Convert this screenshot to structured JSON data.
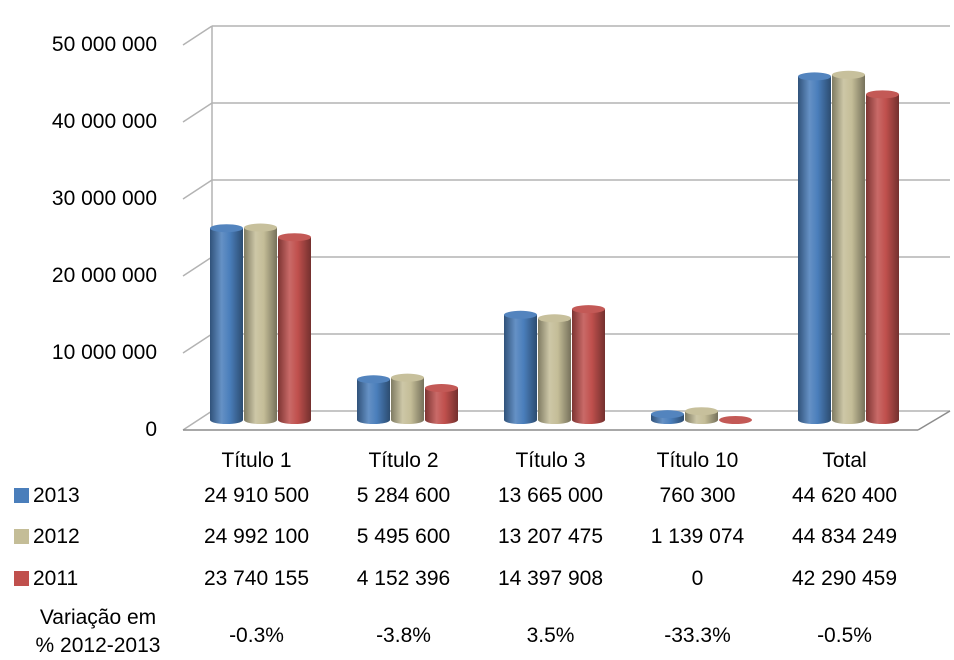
{
  "chart_data": {
    "type": "bar",
    "title": "",
    "xlabel": "",
    "ylabel": "",
    "ylim": [
      0,
      50000000
    ],
    "yticks": [
      0,
      10000000,
      20000000,
      30000000,
      40000000,
      50000000
    ],
    "ytick_labels": [
      "0",
      "10 000 000",
      "20 000 000",
      "30 000 000",
      "40 000 000",
      "50 000 000"
    ],
    "grid": true,
    "categories": [
      "Título 1",
      "Título 2",
      "Título 3",
      "Título 10",
      "Total"
    ],
    "series": [
      {
        "name": "2013",
        "color": "#4a7ebb",
        "values": [
          24910500,
          5284600,
          13665000,
          760300,
          44620400
        ],
        "labels": [
          "24 910 500",
          "5 284 600",
          "13 665 000",
          "760 300",
          "44 620 400"
        ]
      },
      {
        "name": "2012",
        "color": "#c4bd97",
        "values": [
          24992100,
          5495600,
          13207475,
          1139074,
          44834249
        ],
        "labels": [
          "24 992 100",
          "5 495 600",
          "13 207 475",
          "1 139 074",
          "44 834 249"
        ]
      },
      {
        "name": "2011",
        "color": "#c0504d",
        "values": [
          23740155,
          4152396,
          14397908,
          0,
          42290459
        ],
        "labels": [
          "23 740 155",
          "4 152 396",
          "14 397 908",
          "0",
          "42 290 459"
        ]
      }
    ],
    "extra_rows": [
      {
        "label_lines": [
          "Variação em",
          "% 2012-2013"
        ],
        "values": [
          "-0.3%",
          "-3.8%",
          "3.5%",
          "-33.3%",
          "-0.5%"
        ]
      }
    ]
  }
}
